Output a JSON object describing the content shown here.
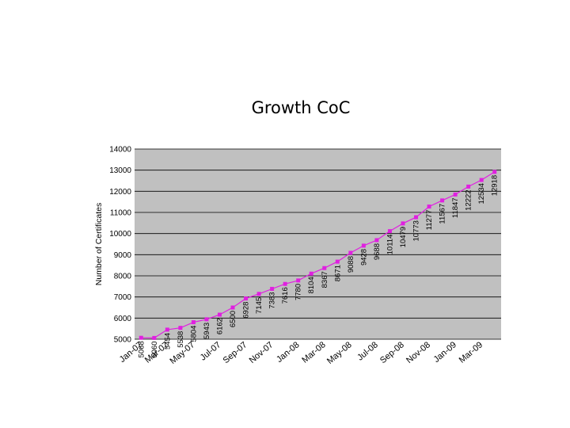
{
  "slide": {
    "title": "Growth CoC"
  },
  "chart_data": {
    "type": "line",
    "title": "Growth CoC",
    "ylabel": "Number of Certificates",
    "xlabel": "",
    "ylim": [
      5000,
      14000
    ],
    "yticks": [
      5000,
      6000,
      7000,
      8000,
      9000,
      10000,
      11000,
      12000,
      13000,
      14000
    ],
    "grid": true,
    "legend": "none",
    "colors": {
      "plot_bg": "#c0c0c0",
      "series": "#e020e0",
      "grid": "#000000"
    },
    "x": [
      "Jan-07",
      "Feb-07",
      "Mar-07",
      "Apr-07",
      "May-07",
      "Jun-07",
      "Jul-07",
      "Aug-07",
      "Sep-07",
      "Oct-07",
      "Nov-07",
      "Dec-07",
      "Jan-08",
      "Feb-08",
      "Mar-08",
      "Apr-08",
      "May-08",
      "Jun-08",
      "Jul-08",
      "Aug-08",
      "Sep-08",
      "Oct-08",
      "Nov-08",
      "Dec-08",
      "Jan-09",
      "Feb-09",
      "Mar-09",
      "Apr-09"
    ],
    "xtick_labels": [
      "Jan-07",
      "Mar-07",
      "May-07",
      "Jul-07",
      "Sep-07",
      "Nov-07",
      "Jan-08",
      "Mar-08",
      "May-08",
      "Jul-08",
      "Sep-08",
      "Nov-08",
      "Jan-09",
      "Mar-09"
    ],
    "series": [
      {
        "values": [
          5068,
          5060,
          5454,
          5538,
          5804,
          5943,
          6162,
          6500,
          6928,
          7145,
          7383,
          7616,
          7780,
          8104,
          8367,
          8671,
          9088,
          9428,
          9688,
          10114,
          10479,
          10773,
          11277,
          11567,
          11847,
          12222,
          12534,
          12918
        ],
        "labels": [
          "5068",
          "5060",
          "5454",
          "5538",
          "5804",
          "5943",
          "6162",
          "6500",
          "6928",
          "7145",
          "7383",
          "7616",
          "7780",
          "8104",
          "8367",
          "8671",
          "9088",
          "9428",
          "9688",
          "10114",
          "10479",
          "10773",
          "11277",
          "11567",
          "11847",
          "12222",
          "12534",
          "12918"
        ]
      }
    ]
  }
}
